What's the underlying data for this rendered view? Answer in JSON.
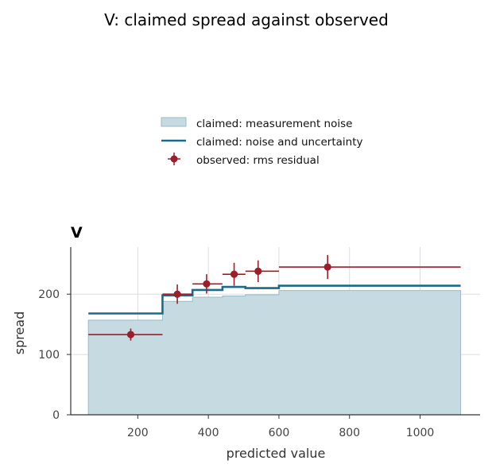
{
  "figure": {
    "suptitle": "V: claimed spread against observed",
    "panel_title": "V"
  },
  "legend": {
    "items": [
      {
        "label": "claimed: measurement noise",
        "kind": "patch"
      },
      {
        "label": "claimed: noise and uncertainty",
        "kind": "line"
      },
      {
        "label": "observed: rms residual",
        "kind": "errorbar"
      }
    ]
  },
  "colors": {
    "fill": "#c5dae1",
    "fill_edge": "#97bcc8",
    "step_line": "#1a6a8a",
    "observed": "#9a1f2a",
    "grid": "#dddddd",
    "axis": "#333333"
  },
  "chart_data": {
    "type": "line",
    "title": "V",
    "xlabel": "predicted value",
    "ylabel": "spread",
    "xlim": [
      10,
      1170
    ],
    "ylim": [
      0,
      278
    ],
    "xticks": [
      200,
      400,
      600,
      800,
      1000
    ],
    "yticks": [
      0,
      100,
      200
    ],
    "grid": true,
    "legend_placement": "above plot",
    "series": [
      {
        "name": "claimed: measurement noise",
        "style": "step-fill",
        "bin_edges": [
          60,
          270,
          355,
          440,
          505,
          600,
          1115
        ],
        "values": [
          157,
          188,
          195,
          197,
          199,
          206
        ]
      },
      {
        "name": "claimed: noise and uncertainty",
        "style": "step-line",
        "bin_edges": [
          60,
          270,
          355,
          440,
          505,
          600,
          1115
        ],
        "values": [
          168,
          198,
          207,
          212,
          210,
          214
        ]
      },
      {
        "name": "observed: rms residual",
        "style": "errorbar",
        "points": [
          {
            "x": 180,
            "y": 133,
            "xerr": [
              60,
              270
            ],
            "yerr": 10
          },
          {
            "x": 312,
            "y": 200,
            "xerr": [
              270,
              355
            ],
            "yerr": 16
          },
          {
            "x": 395,
            "y": 217,
            "xerr": [
              355,
              440
            ],
            "yerr": 16
          },
          {
            "x": 473,
            "y": 233,
            "xerr": [
              440,
              505
            ],
            "yerr": 19
          },
          {
            "x": 541,
            "y": 238,
            "xerr": [
              505,
              600
            ],
            "yerr": 18
          },
          {
            "x": 738,
            "y": 245,
            "xerr": [
              600,
              1115
            ],
            "yerr": 20
          }
        ]
      }
    ]
  }
}
